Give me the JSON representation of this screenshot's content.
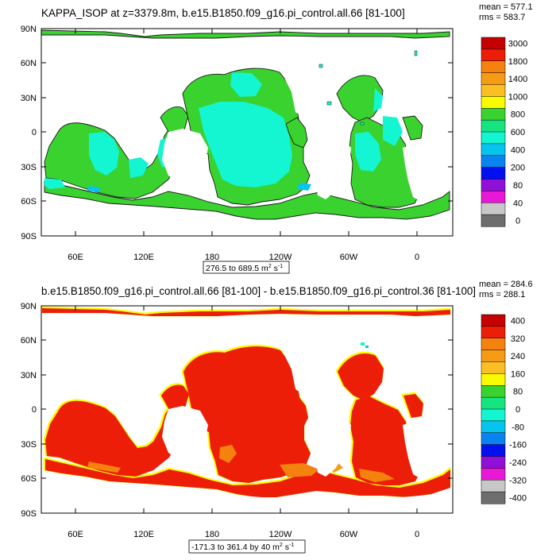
{
  "panels": [
    {
      "title": "KAPPA_ISOP at z=3379.8m, b.e15.B1850.f09_g16.pi_control.all.66 [81-100]",
      "stats": {
        "mean": "mean = 577.1",
        "rms": "rms = 583.7"
      },
      "lat_labels": [
        "90N",
        "60N",
        "30N",
        "0",
        "30S",
        "60S",
        "90S"
      ],
      "lon_labels": [
        "60E",
        "120E",
        "180",
        "120W",
        "60W",
        "0"
      ],
      "range_text": "276.5 to 689.5 m",
      "range_exp": "2",
      "range_unit": " s",
      "range_unit_exp": "-1",
      "colorbar": {
        "labels": [
          "3000",
          "1800",
          "1400",
          "1000",
          "800",
          "600",
          "400",
          "200",
          "80",
          "40",
          "0"
        ],
        "colors": [
          "#c40000",
          "#ec1e08",
          "#f5820f",
          "#f59b16",
          "#fbbf26",
          "#fafa00",
          "#3ad22e",
          "#16e57f",
          "#14f5d2",
          "#06c4ee",
          "#0a82f0",
          "#0010ee",
          "#9010d8",
          "#e818d6",
          "#c8c8c8",
          "#6e6e6e"
        ]
      }
    },
    {
      "title": "b.e15.B1850.f09_g16.pi_control.all.66 [81-100] - b.e15.B1850.f09_g16.pi_control.36 [81-100]",
      "stats": {
        "mean": "mean = 284.6",
        "rms": "rms = 288.1"
      },
      "lat_labels": [
        "90N",
        "60N",
        "30N",
        "0",
        "30S",
        "60S",
        "90S"
      ],
      "lon_labels": [
        "60E",
        "120E",
        "180",
        "120W",
        "60W",
        "0"
      ],
      "range_text": "-171.3 to 361.4 by 40 m",
      "range_exp": "2",
      "range_unit": " s",
      "range_unit_exp": "-1",
      "colorbar": {
        "labels": [
          "400",
          "320",
          "240",
          "160",
          "80",
          "0",
          "-80",
          "-160",
          "-240",
          "-320",
          "-400"
        ],
        "colors": [
          "#c40000",
          "#ec1e08",
          "#f5820f",
          "#f59b16",
          "#fbbf26",
          "#fafa00",
          "#3ad22e",
          "#16e57f",
          "#14f5d2",
          "#06c4ee",
          "#0a82f0",
          "#0010ee",
          "#9010d8",
          "#e818d6",
          "#c8c8c8",
          "#6e6e6e"
        ]
      }
    }
  ]
}
